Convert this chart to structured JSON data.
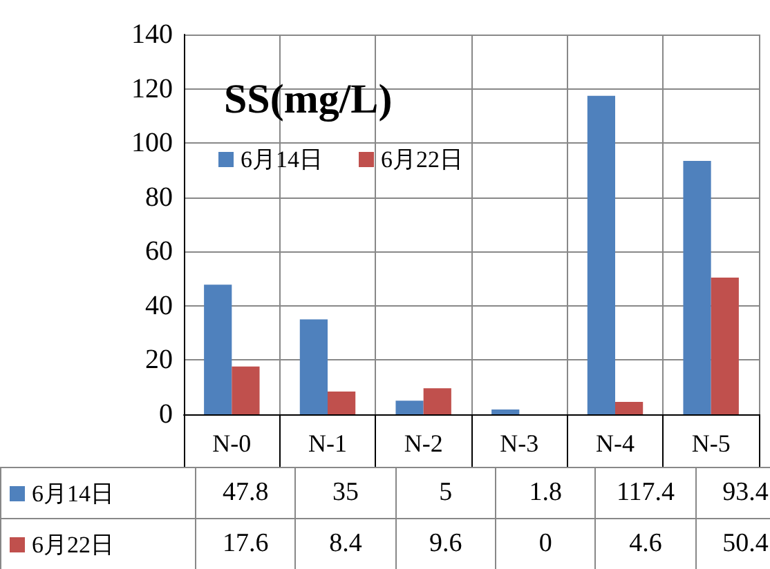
{
  "chart_data": {
    "type": "bar",
    "title": "SS(mg/L)",
    "categories": [
      "N-0",
      "N-1",
      "N-2",
      "N-3",
      "N-4",
      "N-5"
    ],
    "series": [
      {
        "name": "6月14日",
        "color": "#4f81bd",
        "values": [
          47.8,
          35,
          5,
          1.8,
          117.4,
          93.4
        ]
      },
      {
        "name": "6月22日",
        "color": "#c0504d",
        "values": [
          17.6,
          8.4,
          9.6,
          0,
          4.6,
          50.4
        ]
      }
    ],
    "ylim": [
      0,
      140
    ],
    "yticks": [
      0,
      20,
      40,
      60,
      80,
      100,
      120,
      140
    ],
    "grid": true,
    "legend": "top left",
    "data_labels": true
  }
}
